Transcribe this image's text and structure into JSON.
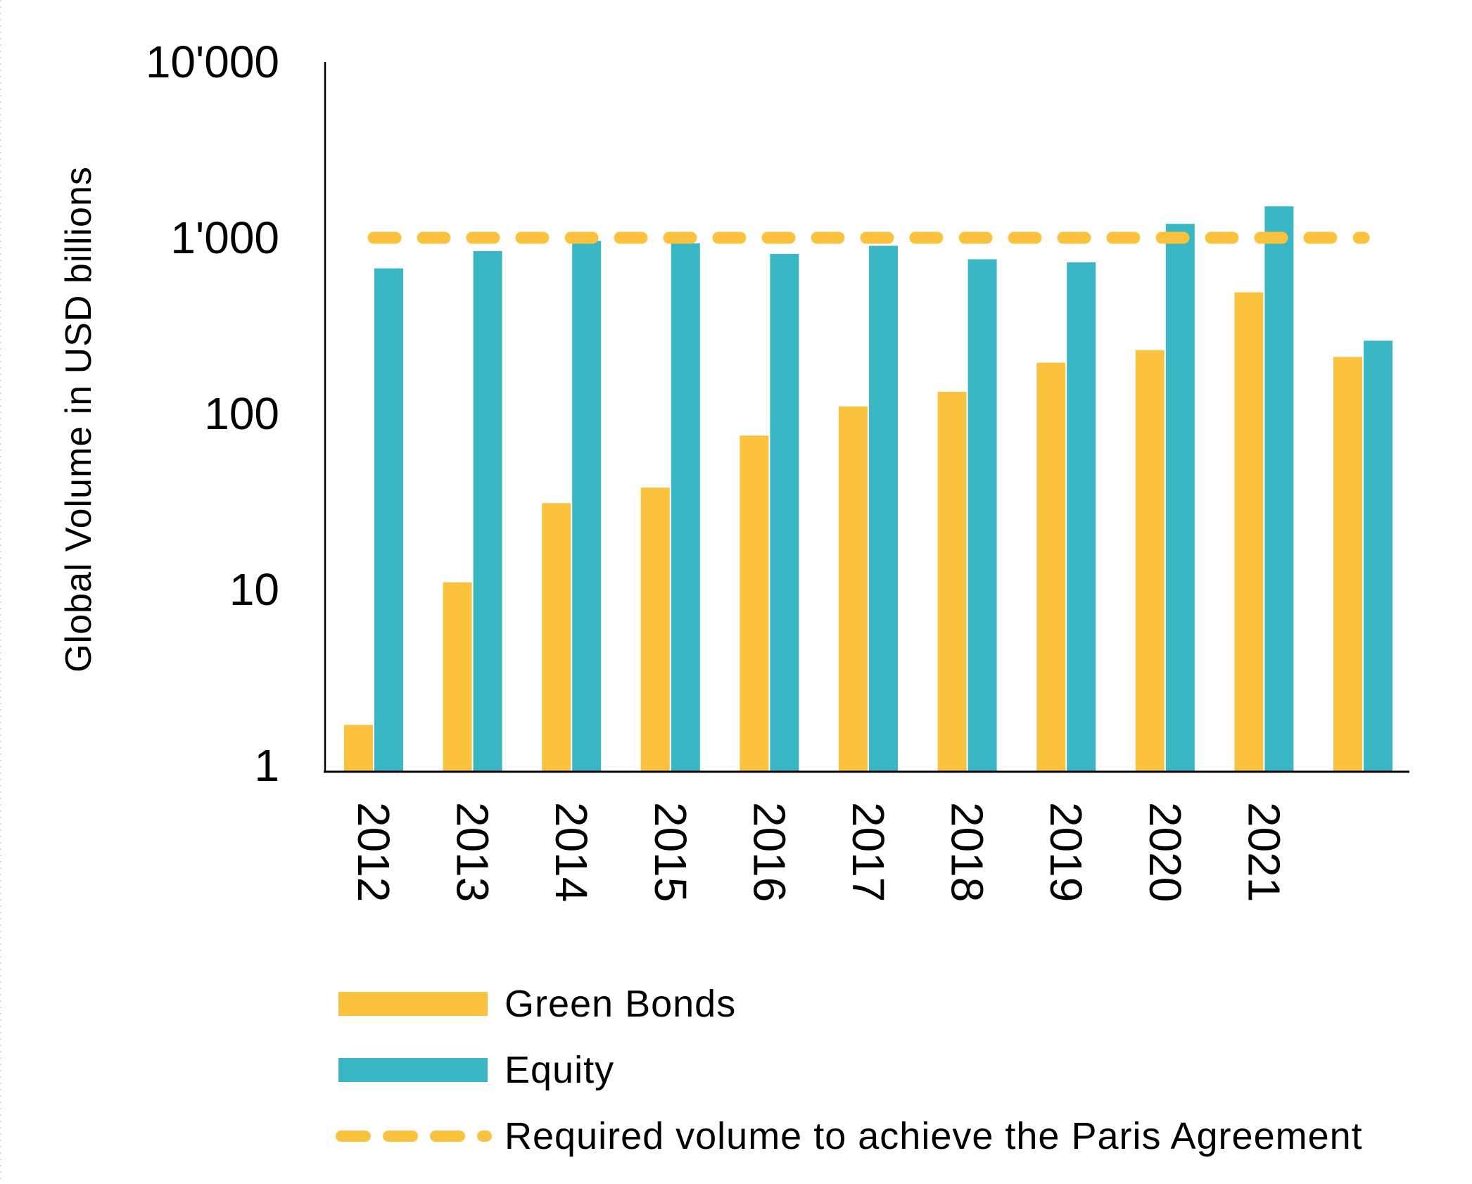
{
  "chart_data": {
    "type": "bar",
    "title": "",
    "xlabel": "",
    "ylabel": "Global Volume in USD billions",
    "y_scale": "log",
    "ylim": [
      1,
      10000
    ],
    "grid": false,
    "legend_position": "bottom-left",
    "y_ticks": [
      {
        "value": 10000,
        "label": "10'000"
      },
      {
        "value": 1000,
        "label": "1'000"
      },
      {
        "value": 100,
        "label": "100"
      },
      {
        "value": 10,
        "label": "10"
      },
      {
        "value": 1,
        "label": "1"
      }
    ],
    "categories": [
      "2012",
      "2013",
      "2014",
      "2015",
      "2016",
      "2017",
      "2018",
      "2019",
      "2020",
      "2021",
      ""
    ],
    "series": [
      {
        "name": "Green Bonds",
        "color": "#FBC33D",
        "values": [
          1.7,
          11,
          31,
          38,
          75,
          110,
          133,
          195,
          230,
          490,
          210
        ]
      },
      {
        "name": "Equity",
        "color": "#3AB7C5",
        "values": [
          670,
          840,
          960,
          930,
          810,
          900,
          755,
          725,
          1200,
          1510,
          260
        ]
      }
    ],
    "reference_line": {
      "label": "Required volume to achieve the Paris Agreement",
      "value": 1000,
      "style": "dashed",
      "color": "#FBC33D"
    }
  }
}
